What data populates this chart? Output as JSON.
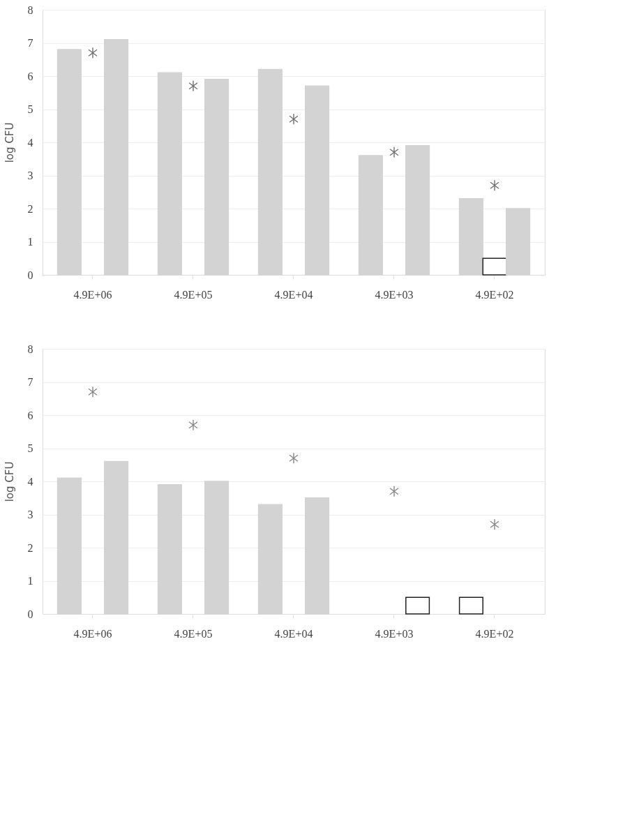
{
  "chart_data": [
    {
      "type": "bar",
      "ylabel": "log CFU",
      "categories": [
        "4.9E+06",
        "4.9E+05",
        "4.9E+04",
        "4.9E+03",
        "4.9E+02"
      ],
      "ylim": [
        0,
        8
      ],
      "yticks": [
        0,
        1,
        2,
        3,
        4,
        5,
        6,
        7,
        8
      ],
      "grid": "y",
      "series": [
        {
          "color": "#d3d3d3",
          "values": [
            6.8,
            6.1,
            6.2,
            3.6,
            2.3
          ]
        },
        {
          "colors": [
            null,
            null,
            null,
            null,
            "#ffffff"
          ],
          "values": [
            null,
            null,
            null,
            null,
            0.5
          ]
        },
        {
          "color": "#d3d3d3",
          "values": [
            7.1,
            5.9,
            5.7,
            3.9,
            2.0
          ]
        },
        {
          "type": "scatter",
          "marker": "cross",
          "color": "#333333",
          "values": [
            6.7,
            5.7,
            4.7,
            3.7,
            2.7
          ]
        }
      ]
    },
    {
      "type": "bar",
      "ylabel": "log CFU",
      "categories": [
        "4.9E+06",
        "4.9E+05",
        "4.9E+04",
        "4.9E+03",
        "4.9E+02"
      ],
      "ylim": [
        0,
        8
      ],
      "yticks": [
        0,
        1,
        2,
        3,
        4,
        5,
        6,
        7,
        8
      ],
      "grid": "y",
      "series": [
        {
          "colors": [
            "#d3d3d3",
            "#d3d3d3",
            "#d3d3d3",
            null,
            "#ffffff"
          ],
          "values": [
            4.1,
            3.9,
            3.3,
            null,
            0.5
          ]
        },
        {
          "values": [
            null,
            null,
            null,
            null,
            null
          ]
        },
        {
          "colors": [
            "#d3d3d3",
            "#d3d3d3",
            "#d3d3d3",
            "#ffffff",
            null
          ],
          "values": [
            4.6,
            4.0,
            3.5,
            0.5,
            null
          ]
        },
        {
          "type": "scatter",
          "marker": "cross",
          "color": "#555555",
          "values": [
            6.7,
            5.7,
            4.7,
            3.7,
            2.7
          ]
        }
      ]
    }
  ]
}
